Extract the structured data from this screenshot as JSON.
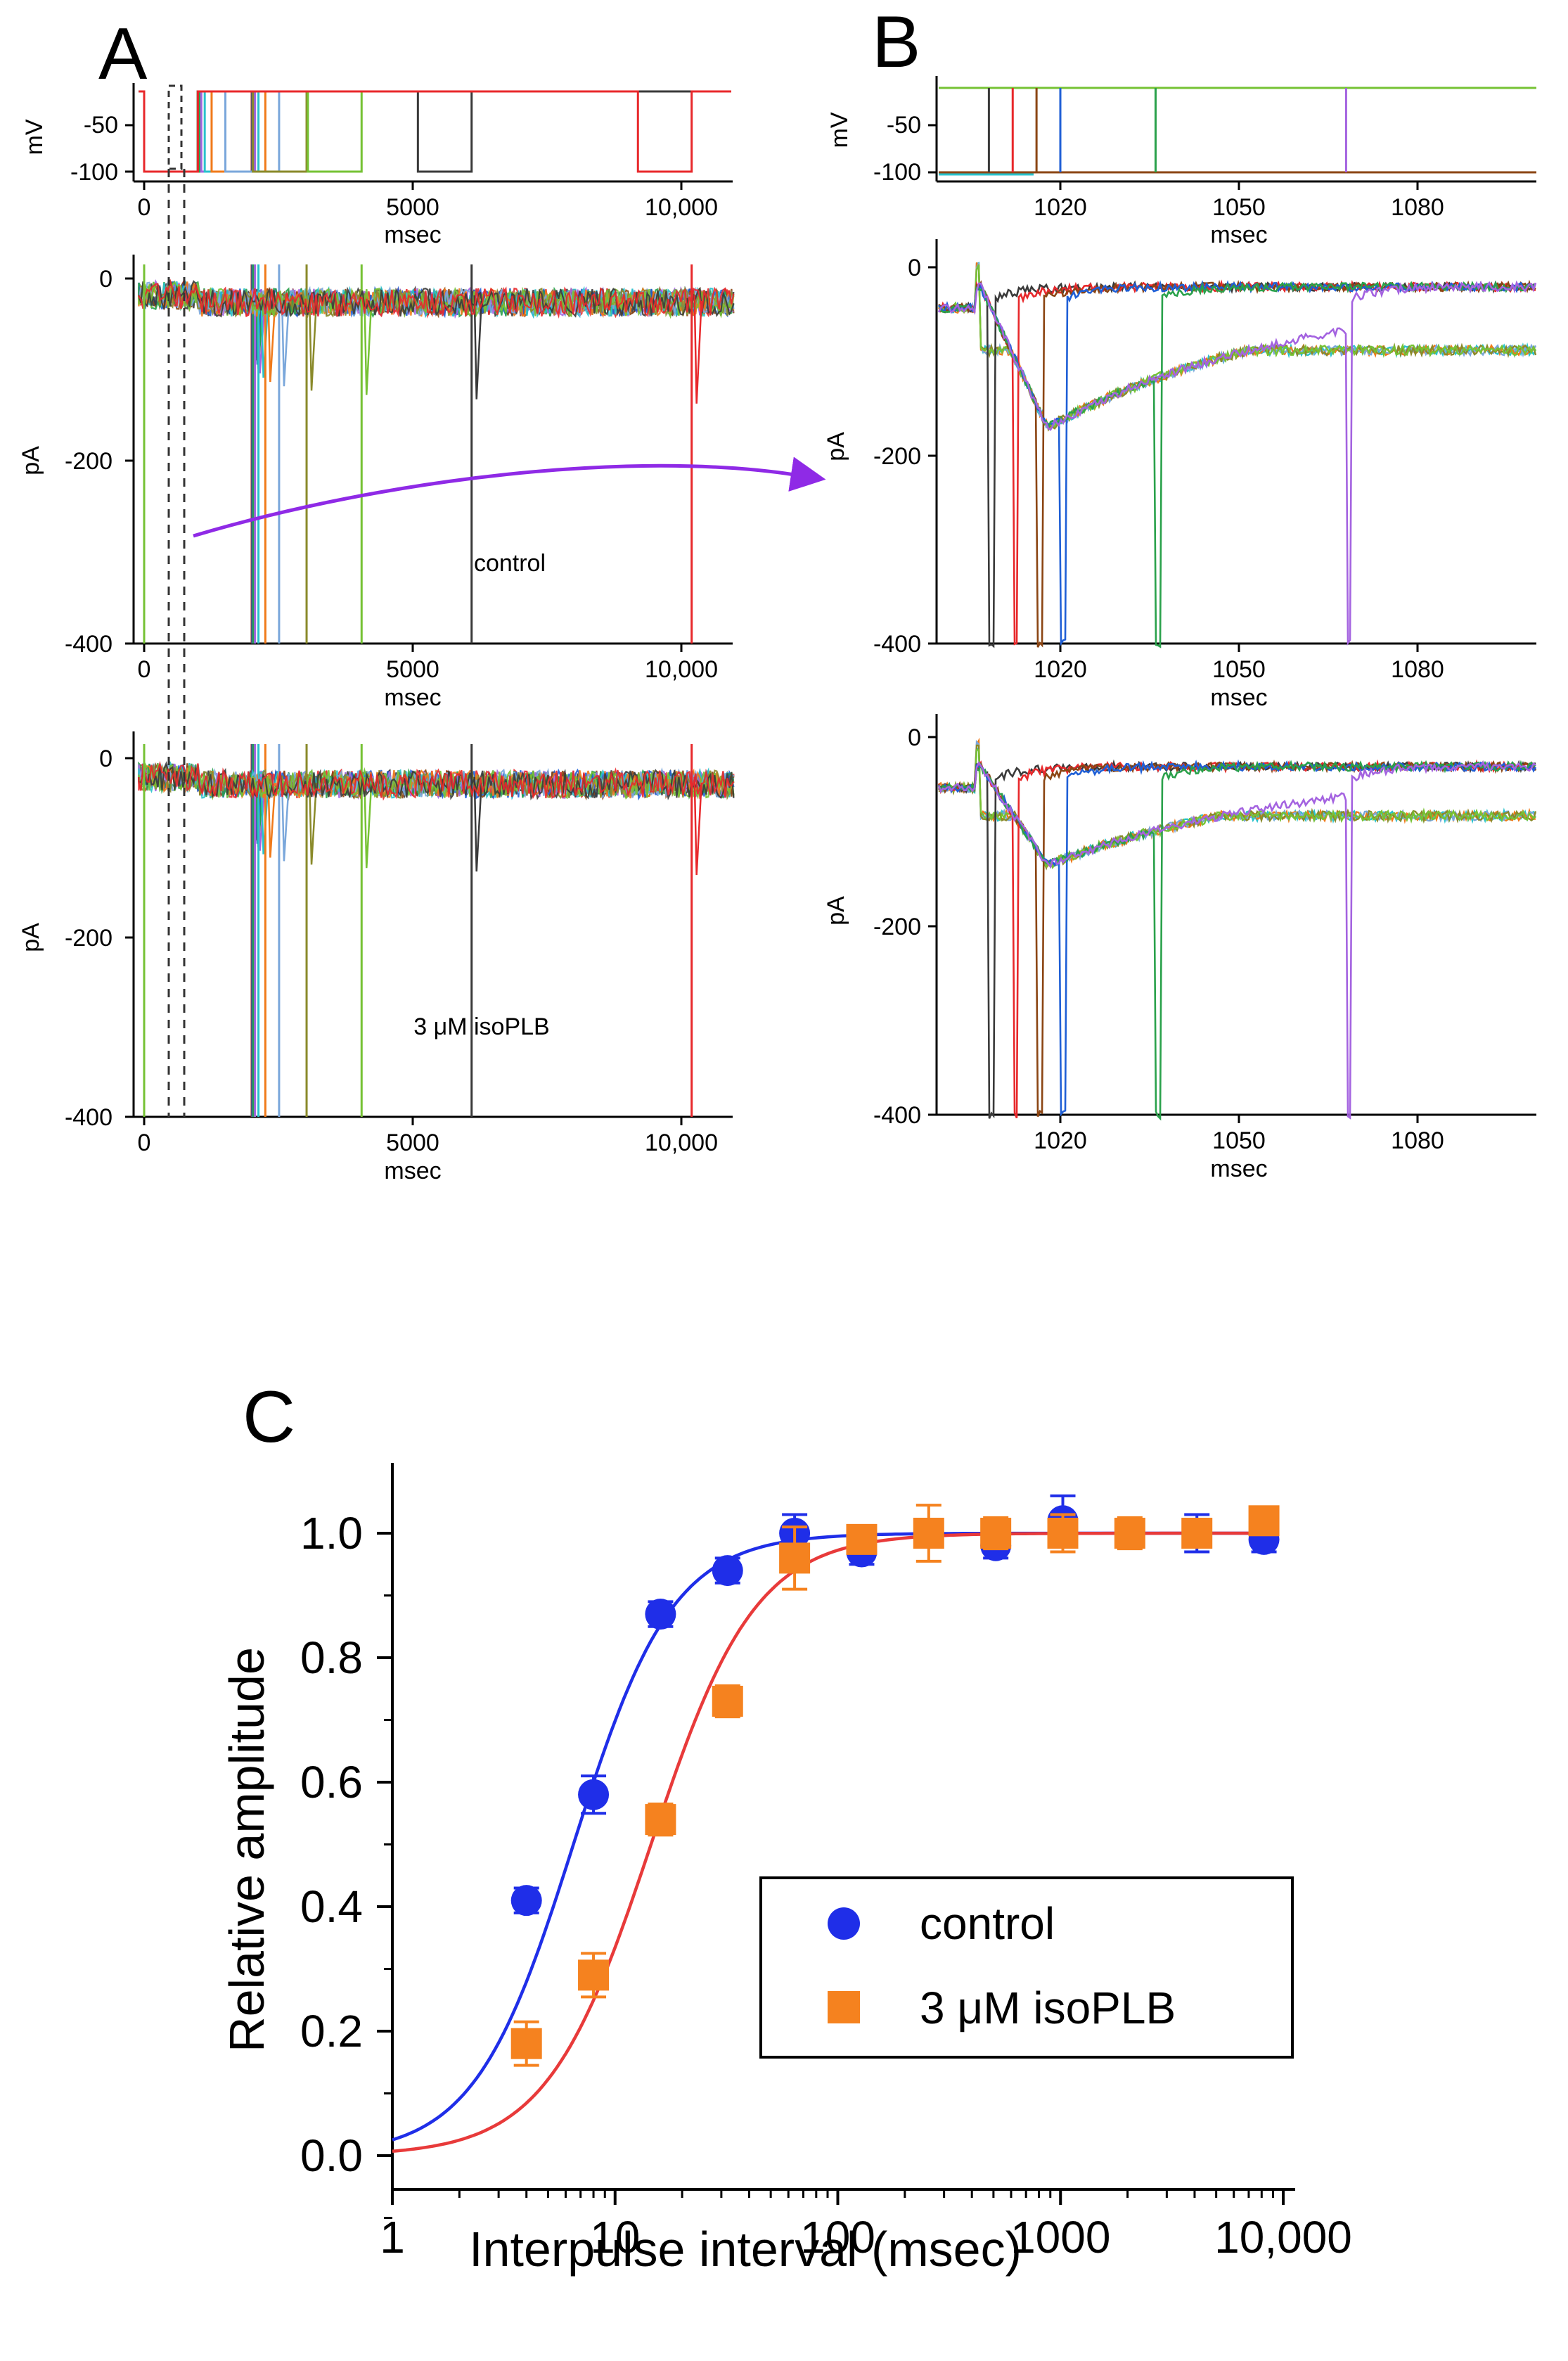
{
  "figure": {
    "panels": {
      "A": {
        "letter": "A",
        "protocol": {
          "ylabel": "mV",
          "yticks": [
            "-50",
            "-100"
          ],
          "xticks": [
            "0",
            "5000",
            "10,000"
          ],
          "xlabel": "msec",
          "test_pulse_times_ms": [
            1002,
            1004,
            1008,
            1016,
            1032,
            1064,
            1128,
            1256,
            1512,
            2024,
            3048,
            5096,
            9192
          ]
        },
        "control": {
          "ylabel": "pA",
          "yticks": [
            "0",
            "-200",
            "-400"
          ],
          "xticks": [
            "0",
            "5000",
            "10,000"
          ],
          "xlabel": "msec",
          "condition_label": "control"
        },
        "drug": {
          "ylabel": "pA",
          "yticks": [
            "0",
            "-200",
            "-400"
          ],
          "xticks": [
            "0",
            "5000",
            "10,000"
          ],
          "xlabel": "msec",
          "condition_label": "3 μM isoPLB"
        }
      },
      "B": {
        "letter": "B",
        "protocol": {
          "ylabel": "mV",
          "yticks": [
            "-50",
            "-100"
          ],
          "xticks": [
            "1020",
            "1050",
            "1080"
          ],
          "xlabel": "msec"
        },
        "control": {
          "ylabel": "pA",
          "yticks": [
            "0",
            "-200",
            "-400"
          ],
          "xticks": [
            "1020",
            "1050",
            "1080"
          ],
          "xlabel": "msec"
        },
        "drug": {
          "ylabel": "pA",
          "yticks": [
            "0",
            "-200",
            "-400"
          ],
          "xticks": [
            "1020",
            "1050",
            "1080"
          ],
          "xlabel": "msec"
        }
      },
      "C": {
        "letter": "C"
      }
    },
    "trace_colors": [
      "#3a3a3a",
      "#e8282b",
      "#8b4513",
      "#1f5fd6",
      "#2aa14b",
      "#a463e0",
      "#29c2cc",
      "#f07a1a",
      "#7aa7db",
      "#8a8a2a",
      "#76c234"
    ]
  },
  "chart_data": {
    "type": "scatter",
    "panel": "C",
    "title": "",
    "xlabel": "Interpulse interval (msec)",
    "ylabel": "Relative amplitude",
    "xscale": "log",
    "xlim": [
      1,
      10000
    ],
    "ylim": [
      -0.1,
      1.1
    ],
    "x_tick_labels": [
      "1",
      "10",
      "100",
      "1000",
      "10,000"
    ],
    "x_tick_values": [
      1,
      10,
      100,
      1000,
      10000
    ],
    "y_tick_labels": [
      "0.0",
      "0.2",
      "0.4",
      "0.6",
      "0.8",
      "1.0"
    ],
    "y_tick_values": [
      0.0,
      0.2,
      0.4,
      0.6,
      0.8,
      1.0
    ],
    "legend_position": "lower-right",
    "series": [
      {
        "name": "control",
        "marker": "circle",
        "color": "#1f2ee8",
        "x": [
          4,
          8,
          16,
          32,
          64,
          128,
          256,
          512,
          1024,
          2048,
          4096,
          8192
        ],
        "y": [
          0.41,
          0.58,
          0.87,
          0.94,
          1.0,
          0.97,
          1.0,
          0.98,
          1.02,
          1.0,
          1.0,
          0.99
        ],
        "error": [
          0.02,
          0.03,
          0.02,
          0.02,
          0.03,
          0.02,
          0.02,
          0.02,
          0.04,
          0.02,
          0.03,
          0.02
        ],
        "fit": {
          "color": "#1f2ee8",
          "x50": 6.5,
          "hill": 1.95
        }
      },
      {
        "name": "3 μM isoPLB",
        "marker": "square",
        "color": "#f5821f",
        "x": [
          4,
          8,
          16,
          32,
          64,
          128,
          256,
          512,
          1024,
          2048,
          4096,
          8192
        ],
        "y": [
          0.18,
          0.29,
          0.54,
          0.73,
          0.96,
          0.99,
          1.0,
          1.0,
          1.0,
          1.0,
          1.0,
          1.02
        ],
        "error": [
          0.035,
          0.035,
          0.025,
          0.025,
          0.05,
          0.02,
          0.045,
          0.025,
          0.03,
          0.025,
          0.02,
          0.02
        ],
        "fit": {
          "color": "#e83a3a",
          "x50": 14.5,
          "hill": 1.85
        }
      }
    ]
  }
}
